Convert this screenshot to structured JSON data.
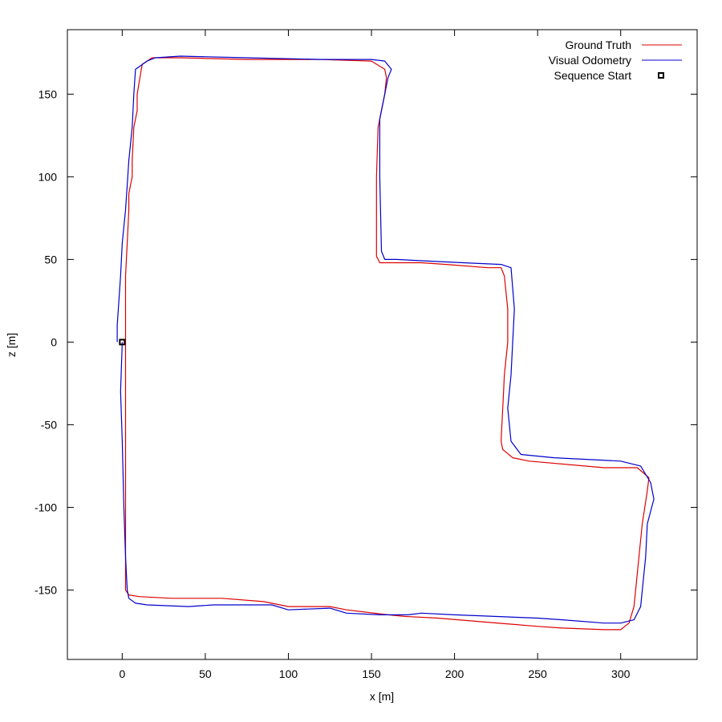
{
  "chart_data": {
    "type": "line",
    "xlabel": "x [m]",
    "ylabel": "z [m]",
    "xlim": [
      -33,
      346
    ],
    "ylim": [
      -192,
      189
    ],
    "xticks": [
      0,
      50,
      100,
      150,
      200,
      250,
      300
    ],
    "yticks": [
      150,
      100,
      50,
      0,
      -50,
      -100,
      -150
    ],
    "legend_position": "top-right",
    "grid": false,
    "series": [
      {
        "name": "Ground Truth",
        "color": "#dd0000",
        "x": [
          2,
          2,
          2,
          2,
          2,
          4,
          10,
          30,
          60,
          85,
          95,
          100,
          110,
          125,
          135,
          160,
          170,
          190,
          250,
          265,
          290,
          300,
          305,
          308,
          313,
          316,
          317,
          310,
          290,
          245,
          235,
          229,
          228,
          229,
          230,
          232,
          232,
          230,
          228,
          220,
          195,
          180,
          165,
          155,
          153,
          153,
          154,
          156,
          158,
          159,
          158,
          150,
          120,
          75,
          35,
          18,
          12,
          9,
          9,
          7,
          6,
          6,
          4,
          4,
          3,
          2,
          2,
          2
        ],
        "y": [
          0,
          -60,
          -100,
          -140,
          -150,
          -153,
          -154,
          -155,
          -155,
          -157,
          -159,
          -160,
          -160,
          -160,
          -162,
          -165,
          -166,
          -167,
          -172,
          -173,
          -174,
          -174,
          -170,
          -160,
          -110,
          -90,
          -82,
          -76,
          -76,
          -72,
          -70,
          -65,
          -60,
          -40,
          -20,
          0,
          20,
          40,
          45,
          45,
          47,
          48,
          48,
          48,
          52,
          100,
          130,
          140,
          150,
          160,
          165,
          170,
          171,
          171,
          172,
          172,
          168,
          150,
          140,
          130,
          110,
          100,
          90,
          80,
          60,
          40,
          20,
          0
        ]
      },
      {
        "name": "Visual Odometry",
        "color": "#0000cc",
        "x": [
          0,
          -1,
          0,
          1,
          2,
          3,
          4,
          8,
          15,
          40,
          55,
          90,
          100,
          125,
          135,
          155,
          172,
          180,
          200,
          250,
          265,
          290,
          300,
          308,
          312,
          315,
          316,
          320,
          318,
          312,
          300,
          260,
          240,
          234,
          232,
          234,
          235,
          236,
          234,
          228,
          205,
          185,
          165,
          158,
          156,
          155,
          155,
          155,
          158,
          160,
          162,
          158,
          150,
          120,
          75,
          35,
          20,
          15,
          8,
          7,
          6,
          4,
          3,
          2,
          0,
          -1,
          -2,
          -3,
          -3
        ],
        "y": [
          0,
          -30,
          -60,
          -100,
          -130,
          -150,
          -155,
          -158,
          -159,
          -160,
          -159,
          -159,
          -162,
          -161,
          -164,
          -165,
          -165,
          -164,
          -165,
          -167,
          -168,
          -170,
          -170,
          -168,
          -160,
          -130,
          -110,
          -95,
          -85,
          -75,
          -72,
          -70,
          -68,
          -60,
          -40,
          -20,
          0,
          20,
          45,
          47,
          48,
          49,
          50,
          50,
          55,
          100,
          120,
          135,
          150,
          160,
          165,
          170,
          171,
          171,
          172,
          173,
          172,
          170,
          165,
          150,
          130,
          110,
          95,
          80,
          60,
          40,
          25,
          10,
          0
        ]
      }
    ],
    "markers": [
      {
        "name": "Sequence Start",
        "x": 0,
        "y": 0,
        "shape": "square"
      }
    ]
  }
}
